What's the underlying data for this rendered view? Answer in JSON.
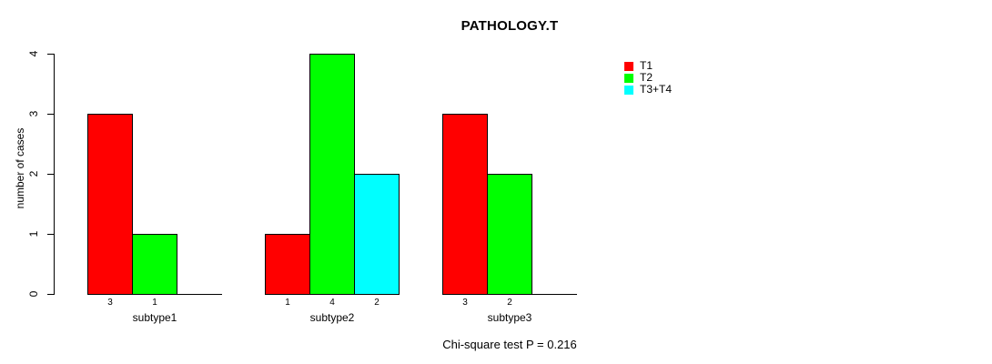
{
  "title": "PATHOLOGY.T",
  "annotation": "Chi-square test P = 0.216",
  "chart_data": {
    "type": "bar",
    "title": "PATHOLOGY.T",
    "categories": [
      "subtype1",
      "subtype2",
      "subtype3"
    ],
    "series": [
      {
        "name": "T1",
        "color": "#ff0000",
        "values": [
          3,
          1,
          3
        ]
      },
      {
        "name": "T2",
        "color": "#00ff00",
        "values": [
          1,
          4,
          2
        ]
      },
      {
        "name": "T3+T4",
        "color": "#00ffff",
        "values": [
          0,
          2,
          0
        ]
      }
    ],
    "xlabel": "",
    "ylabel": "number of cases",
    "ylim": [
      0,
      4
    ],
    "yticks": [
      0,
      1,
      2,
      3,
      4
    ],
    "bar_value_labels": true,
    "grid": false,
    "legend_position": "right",
    "annotation": "Chi-square test P = 0.216"
  }
}
